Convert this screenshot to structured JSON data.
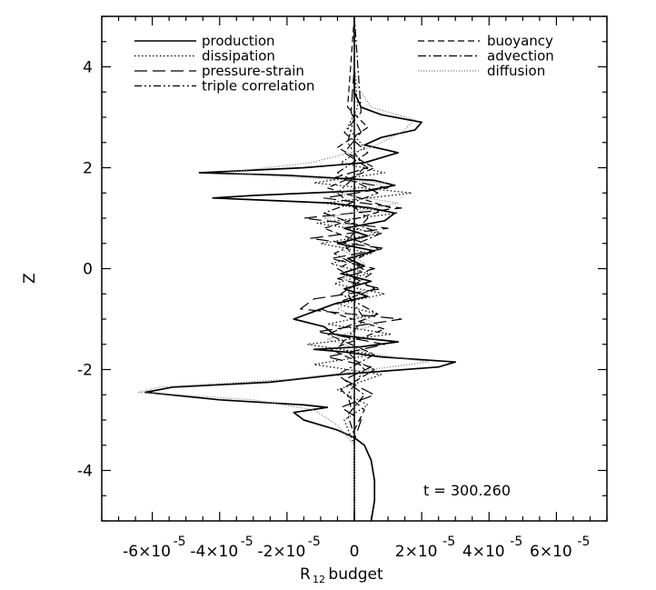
{
  "chart_data": {
    "type": "line",
    "orientation": "vertical-profile",
    "xlabel_main": "R",
    "xlabel_sub": "12",
    "xlabel_rest": " budget",
    "ylabel": "Z",
    "annotation": "t = 300.260",
    "xlim": [
      -7.5e-05,
      7.5e-05
    ],
    "ylim": [
      -5,
      5
    ],
    "x_ticks": [
      {
        "value": -6e-05,
        "label": "-6×10",
        "exp": "-5"
      },
      {
        "value": -4e-05,
        "label": "-4×10",
        "exp": "-5"
      },
      {
        "value": -2e-05,
        "label": "-2×10",
        "exp": "-5"
      },
      {
        "value": 0,
        "label": "0",
        "exp": ""
      },
      {
        "value": 2e-05,
        "label": "2×10",
        "exp": "-5"
      },
      {
        "value": 4e-05,
        "label": "4×10",
        "exp": "-5"
      },
      {
        "value": 6e-05,
        "label": "6×10",
        "exp": "-5"
      }
    ],
    "y_ticks": [
      {
        "value": -4,
        "label": "-4"
      },
      {
        "value": -2,
        "label": "-2"
      },
      {
        "value": 0,
        "label": "0"
      },
      {
        "value": 2,
        "label": "2"
      },
      {
        "value": 4,
        "label": "4"
      }
    ],
    "legend_left": [
      {
        "name": "production",
        "dash": "solid"
      },
      {
        "name": "dissipation",
        "dash": "dotted"
      },
      {
        "name": "pressure-strain",
        "dash": "longdash"
      },
      {
        "name": "triple correlation",
        "dash": "dashdotdot"
      }
    ],
    "legend_right": [
      {
        "name": "buoyancy",
        "dash": "dashed"
      },
      {
        "name": "advection",
        "dash": "dashdot"
      },
      {
        "name": "diffusion",
        "dash": "finedot"
      }
    ],
    "series": [
      {
        "name": "production",
        "dash": "solid",
        "color": "#000000",
        "z": [
          -5.0,
          -4.6,
          -4.2,
          -3.8,
          -3.5,
          -3.35,
          -3.2,
          -3.0,
          -2.85,
          -2.75,
          -2.7,
          -2.6,
          -2.45,
          -2.35,
          -2.25,
          -2.1,
          -1.95,
          -1.85,
          -1.75,
          -1.65,
          -1.6,
          -1.55,
          -1.45,
          -1.38,
          -1.3,
          -1.15,
          -1.0,
          -0.85,
          -0.7,
          -0.55,
          -0.4,
          -0.25,
          -0.1,
          0.05,
          0.2,
          0.35,
          0.5,
          0.65,
          0.8,
          0.95,
          1.1,
          1.2,
          1.3,
          1.4,
          1.45,
          1.55,
          1.65,
          1.75,
          1.85,
          1.9,
          2.0,
          2.1,
          2.2,
          2.3,
          2.45,
          2.6,
          2.75,
          2.9,
          3.05,
          3.2,
          3.5,
          4.0,
          4.5,
          5.0
        ],
        "x": [
          5e-06,
          6e-06,
          6e-06,
          5e-06,
          3e-06,
          0,
          -5e-06,
          -1.5e-05,
          -1.8e-05,
          -8e-06,
          -1.5e-05,
          -4e-05,
          -6.2e-05,
          -5.4e-05,
          -2.5e-05,
          -5e-06,
          2.5e-05,
          3e-05,
          8e-06,
          -3e-06,
          -1.2e-05,
          2e-06,
          1.3e-05,
          3e-06,
          -6e-06,
          -9e-06,
          -1.8e-05,
          -1.2e-05,
          -6e-06,
          4e-06,
          -3e-06,
          5e-06,
          -4e-06,
          3e-06,
          -2e-06,
          6e-06,
          -5e-06,
          4e-06,
          -3e-06,
          9e-06,
          1.2e-05,
          5e-06,
          -7e-06,
          -4.2e-05,
          -3e-05,
          4e-06,
          1.2e-05,
          6e-06,
          -2e-05,
          -4.6e-05,
          -1.5e-05,
          3e-06,
          8e-06,
          1.3e-05,
          3e-06,
          8e-06,
          1.8e-05,
          2e-05,
          8e-06,
          2e-06,
          0,
          0,
          0,
          0
        ]
      },
      {
        "name": "dissipation",
        "dash": "dotted",
        "color": "#000000",
        "z": [
          -5.0,
          -3.5,
          -3.0,
          -2.7,
          -2.4,
          -2.1,
          -1.9,
          -1.7,
          -1.5,
          -1.3,
          -1.1,
          -0.9,
          -0.7,
          -0.5,
          -0.3,
          -0.1,
          0.1,
          0.3,
          0.5,
          0.7,
          0.9,
          1.1,
          1.3,
          1.5,
          1.7,
          1.9,
          2.1,
          2.4,
          2.8,
          3.2,
          4.0,
          5.0
        ],
        "x": [
          0,
          0,
          -3e-06,
          4e-06,
          -5e-06,
          8e-06,
          -1.2e-05,
          6e-06,
          -1.4e-05,
          1.1e-05,
          -8e-06,
          7e-06,
          -5e-06,
          9e-06,
          -6e-06,
          4e-06,
          -7e-06,
          5e-06,
          -1e-05,
          8e-06,
          -1.1e-05,
          1.3e-05,
          -9e-06,
          1.7e-05,
          -1.2e-05,
          9e-06,
          -4e-06,
          3e-06,
          -2e-06,
          1e-06,
          0,
          0
        ]
      },
      {
        "name": "pressure-strain",
        "dash": "longdash",
        "color": "#000000",
        "z": [
          -5.0,
          -3.4,
          -3.0,
          -2.75,
          -2.5,
          -2.2,
          -1.95,
          -1.75,
          -1.5,
          -1.25,
          -1.0,
          -0.8,
          -0.6,
          -0.4,
          -0.2,
          0,
          0.2,
          0.4,
          0.6,
          0.8,
          1.0,
          1.2,
          1.4,
          1.6,
          1.8,
          2.0,
          2.3,
          2.7,
          3.1,
          4.0,
          5.0
        ],
        "x": [
          0,
          0,
          2e-06,
          -4e-06,
          6e-06,
          -3e-06,
          5e-06,
          -8e-06,
          9e-06,
          -1.1e-05,
          1.4e-05,
          -1.6e-05,
          -1.2e-05,
          8e-06,
          -5e-06,
          6e-06,
          -7e-06,
          9e-06,
          -1.3e-05,
          1e-05,
          -1.5e-05,
          1.4e-05,
          -9e-06,
          1e-05,
          -6e-06,
          4e-06,
          -3e-06,
          2e-06,
          -1e-06,
          0,
          0
        ]
      },
      {
        "name": "triple correlation",
        "dash": "dashdotdot",
        "color": "#000000",
        "z": [
          -5.0,
          -3.0,
          -2.5,
          -2.0,
          -1.5,
          -1.0,
          -0.5,
          0,
          0.5,
          1.0,
          1.5,
          2.0,
          2.5,
          3.0,
          5.0
        ],
        "x": [
          0,
          0,
          -2e-06,
          3e-06,
          -4e-06,
          3e-06,
          -2e-06,
          2e-06,
          -3e-06,
          4e-06,
          -5e-06,
          3e-06,
          -2e-06,
          0,
          0
        ]
      },
      {
        "name": "buoyancy",
        "dash": "dashed",
        "color": "#000000",
        "z": [
          -5.0,
          -3.2,
          -2.8,
          -2.4,
          -2.0,
          -1.6,
          -1.2,
          -0.8,
          -0.4,
          0,
          0.4,
          0.8,
          1.2,
          1.6,
          2.0,
          2.4,
          2.8,
          3.2,
          5.0
        ],
        "x": [
          0,
          0,
          3e-06,
          -4e-06,
          6e-06,
          -7e-06,
          9e-06,
          -1e-05,
          6e-06,
          -5e-06,
          7e-06,
          -9e-06,
          1.1e-05,
          -8e-06,
          6e-06,
          -5e-06,
          4e-06,
          -2e-06,
          0
        ]
      },
      {
        "name": "advection",
        "dash": "dashdot",
        "color": "#000000",
        "z": [
          -5.0,
          -3.3,
          -2.9,
          -2.5,
          -2.1,
          -1.7,
          -1.3,
          -0.9,
          -0.5,
          -0.1,
          0.3,
          0.7,
          1.1,
          1.5,
          1.9,
          2.3,
          2.7,
          3.1,
          5.0
        ],
        "x": [
          0,
          0,
          -2e-06,
          3e-06,
          -5e-06,
          6e-06,
          -8e-06,
          7e-06,
          -4e-06,
          5e-06,
          -6e-06,
          8e-06,
          -9e-06,
          7e-06,
          -5e-06,
          4e-06,
          -3e-06,
          2e-06,
          0
        ]
      },
      {
        "name": "diffusion",
        "dash": "finedot",
        "color": "#777777",
        "z": [
          -5.0,
          -3.5,
          -3.1,
          -2.8,
          -2.6,
          -2.45,
          -2.35,
          -2.2,
          -2.0,
          -1.85,
          -1.7,
          -1.4,
          -1.1,
          -0.8,
          -0.5,
          -0.2,
          0.1,
          0.4,
          0.7,
          1.0,
          1.3,
          1.5,
          1.7,
          1.9,
          2.1,
          2.4,
          2.7,
          2.95,
          3.2,
          3.6,
          4.0,
          5.0
        ],
        "x": [
          0,
          0,
          -5e-06,
          -1.2e-05,
          -3e-05,
          -6.4e-05,
          -5.8e-05,
          -2e-05,
          5e-06,
          2.2e-05,
          6e-06,
          -8e-06,
          7e-06,
          -5e-06,
          4e-06,
          -3e-06,
          3e-06,
          -4e-06,
          6e-06,
          -9e-06,
          1.3e-05,
          -6e-06,
          9e-06,
          -3.9e-05,
          -1.3e-05,
          5e-06,
          1.4e-05,
          1.8e-05,
          5e-06,
          1e-06,
          0,
          0
        ]
      }
    ]
  }
}
